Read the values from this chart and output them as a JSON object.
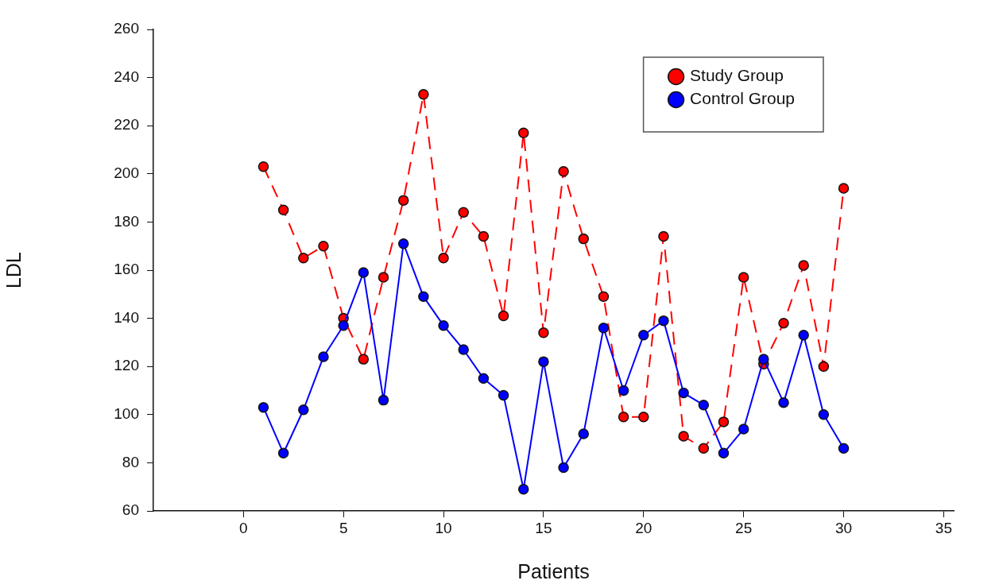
{
  "chart_data": {
    "type": "line",
    "xlabel": "Patients",
    "ylabel": "LDL",
    "x": [
      1,
      2,
      3,
      4,
      5,
      6,
      7,
      8,
      9,
      10,
      11,
      12,
      13,
      14,
      15,
      16,
      17,
      18,
      19,
      20,
      21,
      22,
      23,
      24,
      25,
      26,
      27,
      28,
      29,
      30
    ],
    "series": [
      {
        "name": "Study Group",
        "color": "#ff0000",
        "line_style": "dashed",
        "values": [
          203,
          185,
          165,
          170,
          140,
          123,
          157,
          189,
          233,
          165,
          184,
          174,
          141,
          217,
          134,
          201,
          173,
          149,
          99,
          99,
          174,
          91,
          86,
          97,
          157,
          121,
          138,
          162,
          120,
          194
        ]
      },
      {
        "name": "Control Group",
        "color": "#0000ff",
        "line_style": "solid",
        "values": [
          103,
          84,
          102,
          124,
          137,
          159,
          106,
          171,
          149,
          137,
          127,
          115,
          108,
          69,
          122,
          78,
          92,
          136,
          110,
          133,
          139,
          109,
          104,
          84,
          94,
          123,
          105,
          133,
          100,
          86
        ]
      }
    ],
    "xlim": [
      -4.5,
      35.5
    ],
    "xticks": [
      0,
      5,
      10,
      15,
      20,
      25,
      30,
      35
    ],
    "ylim": [
      60,
      260
    ],
    "yticks": [
      60,
      80,
      100,
      120,
      140,
      160,
      180,
      200,
      220,
      240,
      260
    ],
    "grid": false,
    "legend": "top right",
    "marker": "circle"
  }
}
